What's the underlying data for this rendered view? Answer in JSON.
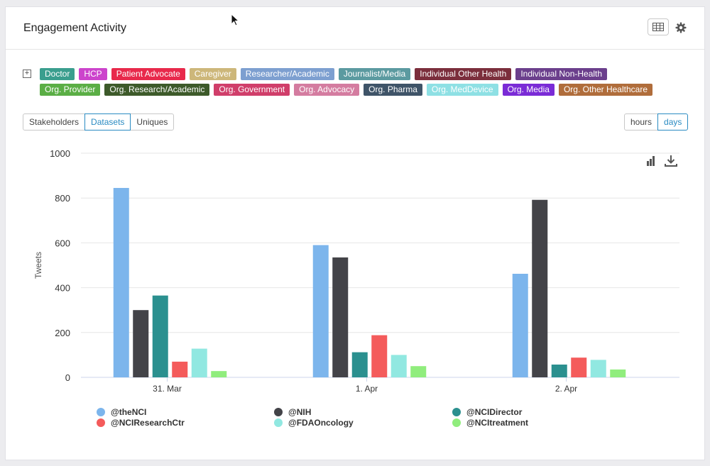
{
  "header": {
    "title": "Engagement Activity"
  },
  "tags": {
    "expand_symbol": "+",
    "rows": [
      [
        {
          "label": "Doctor",
          "color": "#3a9e8e"
        },
        {
          "label": "HCP",
          "color": "#cc44cc"
        },
        {
          "label": "Patient Advocate",
          "color": "#e8294b"
        },
        {
          "label": "Caregiver",
          "color": "#cdb77a"
        },
        {
          "label": "Researcher/Academic",
          "color": "#7d9fd0"
        },
        {
          "label": "Journalist/Media",
          "color": "#5b9aa0"
        },
        {
          "label": "Individual Other Health",
          "color": "#7b2e3c"
        },
        {
          "label": "Individual Non-Health",
          "color": "#6b3f8c"
        }
      ],
      [
        {
          "label": "Org. Provider",
          "color": "#5aae45"
        },
        {
          "label": "Org. Research/Academic",
          "color": "#3d5a2a"
        },
        {
          "label": "Org. Government",
          "color": "#d03e6a"
        },
        {
          "label": "Org. Advocacy",
          "color": "#d47ca0"
        },
        {
          "label": "Org. Pharma",
          "color": "#3f5468"
        },
        {
          "label": "Org. MedDevice",
          "color": "#8ee0e4"
        },
        {
          "label": "Org. Media",
          "color": "#7a2bd6"
        },
        {
          "label": "Org. Other Healthcare",
          "color": "#b06d3b"
        }
      ]
    ]
  },
  "view_buttons": [
    {
      "label": "Stakeholders",
      "active": false
    },
    {
      "label": "Datasets",
      "active": true
    },
    {
      "label": "Uniques",
      "active": false
    }
  ],
  "time_buttons": [
    {
      "label": "hours",
      "active": false
    },
    {
      "label": "days",
      "active": true
    }
  ],
  "icons": {
    "table": "table-icon",
    "settings": "gear-icon",
    "chart_type": "bar-chart-icon",
    "download": "download-icon",
    "cursor": "mouse-pointer-icon"
  },
  "chart_data": {
    "type": "bar",
    "categories": [
      "31. Mar",
      "1. Apr",
      "2. Apr"
    ],
    "ylabel": "Tweets",
    "xlabel": "",
    "ylim": [
      0,
      1000
    ],
    "yticks": [
      0,
      200,
      400,
      600,
      800,
      1000
    ],
    "grid": true,
    "legend_position": "bottom",
    "series": [
      {
        "name": "@theNCI",
        "color": "#7cb5ec",
        "values": [
          845,
          590,
          462
        ]
      },
      {
        "name": "@NIH",
        "color": "#434348",
        "values": [
          300,
          535,
          792
        ]
      },
      {
        "name": "@NCIDirector",
        "color": "#2b908f",
        "values": [
          365,
          112,
          57
        ]
      },
      {
        "name": "@NCIResearchCtr",
        "color": "#f45b5b",
        "values": [
          70,
          188,
          88
        ]
      },
      {
        "name": "@FDAOncology",
        "color": "#91e8e1",
        "values": [
          128,
          100,
          78
        ]
      },
      {
        "name": "@NCItreatment",
        "color": "#90ed7d",
        "values": [
          28,
          50,
          35
        ]
      }
    ]
  }
}
